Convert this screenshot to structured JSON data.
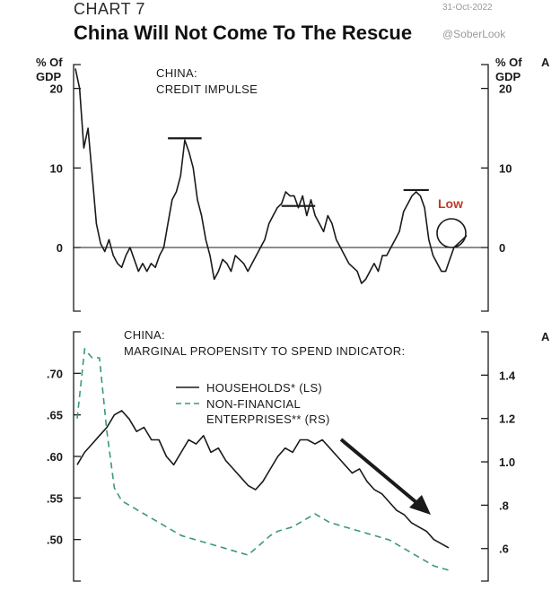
{
  "header": {
    "chart_number": "CHART 7",
    "title": "China Will Not Come To The Rescue",
    "date": "31-Oct-2022",
    "handle": "@SoberLook"
  },
  "colors": {
    "households": "#1a1a1a",
    "enterprises": "#3a9a74",
    "annotation": "#c0392b"
  },
  "chart_data": [
    {
      "type": "line",
      "panel": "top",
      "title": "CHINA:\nCREDIT IMPULSE",
      "ylabel": "% Of GDP",
      "ylabel_right": "% Of GDP",
      "ylim": [
        -8,
        23
      ],
      "yticks": [
        0,
        10,
        20
      ],
      "ytick_labels": [
        "0",
        "10",
        "20"
      ],
      "annotation": "Low",
      "corner_mark": "A",
      "series": [
        {
          "values": [
            22.5,
            20,
            12.5,
            15,
            9,
            3,
            0.5,
            -0.5,
            1,
            -1,
            -2,
            -2.5,
            -1,
            0,
            -1.5,
            -3,
            -2,
            -3,
            -2,
            -2.5,
            -1,
            0,
            3,
            6,
            7,
            9,
            13.5,
            12,
            10,
            6,
            4,
            1,
            -1,
            -4,
            -3,
            -1.5,
            -2,
            -3,
            -1,
            -1.5,
            -2,
            -3,
            -2,
            -1,
            0,
            1,
            3,
            4,
            5,
            5.5,
            7,
            6.5,
            6.5,
            5,
            6.5,
            4,
            6,
            4,
            3,
            2,
            4,
            3,
            1,
            0,
            -1,
            -2,
            -2.5,
            -3,
            -4.5,
            -4,
            -3,
            -2,
            -3,
            -1,
            -1,
            0,
            1,
            2,
            4.5,
            5.5,
            6.5,
            7,
            6.5,
            5,
            1,
            -1,
            -2,
            -3,
            -3,
            -1.5,
            0,
            0.5,
            1,
            1.5
          ]
        }
      ],
      "peak_markers": 3
    },
    {
      "type": "line",
      "panel": "bottom",
      "title": "CHINA:\nMARGINAL PROPENSITY TO SPEND INDICATOR:",
      "ylim": [
        0.45,
        0.75
      ],
      "ylim_right": [
        0.45,
        1.6
      ],
      "yticks": [
        0.5,
        0.55,
        0.6,
        0.65,
        0.7
      ],
      "ytick_labels": [
        ".50",
        ".55",
        ".60",
        ".65",
        ".70"
      ],
      "yticks_right": [
        0.6,
        0.8,
        1.0,
        1.2,
        1.4
      ],
      "ytick_labels_right": [
        ".6",
        ".8",
        "1.0",
        "1.2",
        "1.4"
      ],
      "corner_mark": "A",
      "series": [
        {
          "name": "HOUSEHOLDS* (LS)",
          "axis": "left",
          "values": [
            0.59,
            0.605,
            0.615,
            0.625,
            0.635,
            0.65,
            0.655,
            0.645,
            0.63,
            0.635,
            0.62,
            0.62,
            0.6,
            0.59,
            0.605,
            0.62,
            0.615,
            0.625,
            0.605,
            0.61,
            0.595,
            0.585,
            0.575,
            0.565,
            0.56,
            0.57,
            0.585,
            0.6,
            0.61,
            0.605,
            0.62,
            0.62,
            0.615,
            0.62,
            0.61,
            0.6,
            0.59,
            0.58,
            0.585,
            0.57,
            0.56,
            0.555,
            0.545,
            0.535,
            0.53,
            0.52,
            0.515,
            0.51,
            0.5,
            0.495,
            0.49
          ]
        },
        {
          "name": "NON-FINANCIAL\nENTERPRISES** (RS)",
          "axis": "right",
          "style": "dashed",
          "values": [
            1.2,
            1.52,
            1.48,
            1.48,
            1.14,
            0.88,
            0.82,
            0.8,
            0.78,
            0.76,
            0.74,
            0.72,
            0.7,
            0.68,
            0.66,
            0.65,
            0.64,
            0.63,
            0.62,
            0.61,
            0.6,
            0.59,
            0.58,
            0.57,
            0.6,
            0.63,
            0.66,
            0.68,
            0.69,
            0.7,
            0.72,
            0.74,
            0.76,
            0.74,
            0.72,
            0.71,
            0.7,
            0.69,
            0.68,
            0.67,
            0.66,
            0.65,
            0.64,
            0.62,
            0.6,
            0.58,
            0.56,
            0.54,
            0.52,
            0.51,
            0.5
          ]
        }
      ],
      "trend_arrow": true
    }
  ]
}
